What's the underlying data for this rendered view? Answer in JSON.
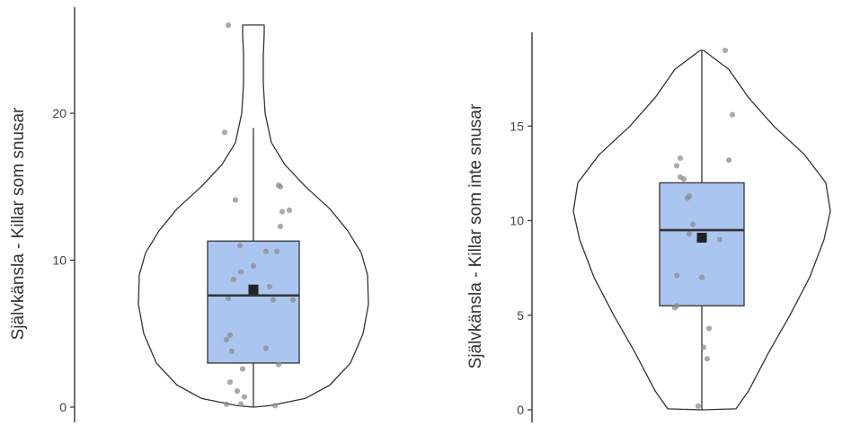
{
  "colors": {
    "box_fill": "#aac5f0",
    "outline": "#333333",
    "point": "#8c8c8c",
    "mean": "#222222"
  },
  "chart_data": [
    {
      "type": "violin_box",
      "title": "",
      "xlabel": "",
      "ylabel": "Självkänsla - Killar som snusar",
      "ylim": [
        0,
        26
      ],
      "yticks": [
        0,
        10,
        20
      ],
      "box": {
        "q1": 3.0,
        "median": 7.6,
        "q3": 11.3,
        "whisker_low": 0,
        "whisker_high": 19.0
      },
      "mean": 8.0,
      "points": [
        26,
        18.7,
        15.1,
        15.0,
        14.1,
        13.4,
        13.3,
        12.3,
        11.0,
        10.6,
        10.6,
        9.6,
        9.2,
        8.7,
        8.2,
        7.4,
        7.3,
        7.3,
        4.9,
        4.6,
        4.0,
        3.8,
        2.9,
        2.6,
        1.7,
        1.1,
        0.7,
        0.2,
        0.2,
        0.1
      ],
      "grid": false,
      "legend": "none"
    },
    {
      "type": "violin_box",
      "title": "",
      "xlabel": "",
      "ylabel": "Självkänsla - Killar som inte snusar",
      "ylim": [
        0,
        19
      ],
      "yticks": [
        0,
        5,
        10,
        15
      ],
      "box": {
        "q1": 5.5,
        "median": 9.5,
        "q3": 12.0,
        "whisker_low": 0,
        "whisker_high": 19
      },
      "mean": 9.1,
      "points": [
        19,
        15.6,
        13.3,
        13.2,
        12.9,
        12.3,
        12.2,
        11.3,
        11.2,
        9.8,
        9.3,
        9.0,
        7.1,
        7.0,
        5.5,
        5.4,
        4.3,
        3.3,
        2.7,
        0.2
      ],
      "grid": false,
      "legend": "none"
    }
  ]
}
